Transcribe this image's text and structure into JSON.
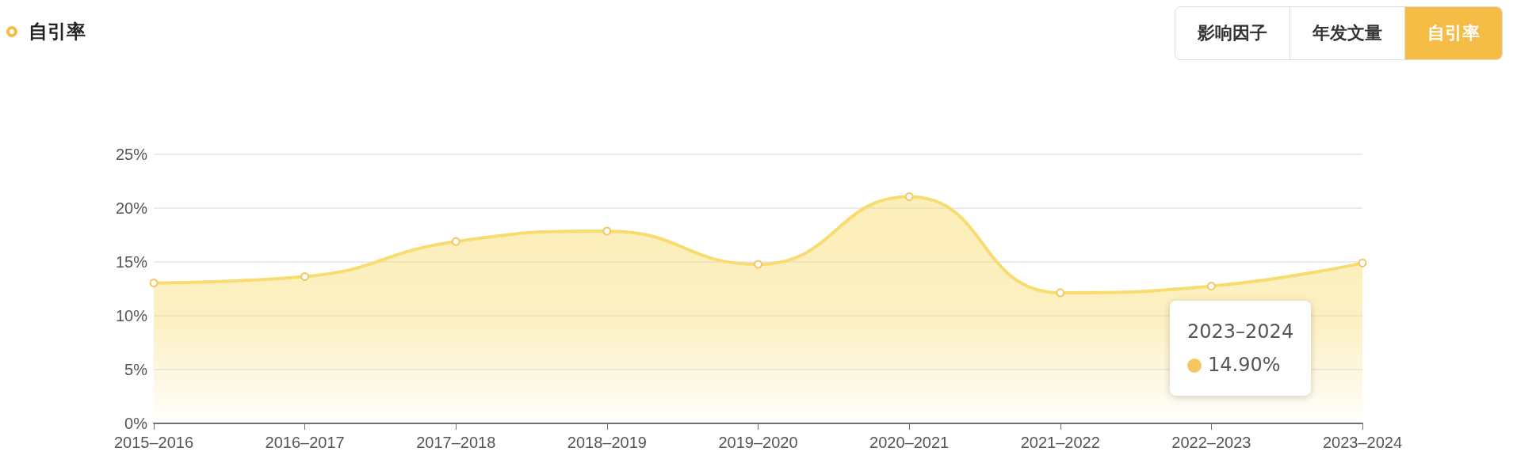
{
  "chart_data": {
    "type": "area",
    "title": "自引率",
    "categories": [
      "2015–2016",
      "2016–2017",
      "2017–2018",
      "2018–2019",
      "2019–2020",
      "2020–2021",
      "2021–2022",
      "2022–2023",
      "2023–2024"
    ],
    "series": [
      {
        "color": "#f8dc70",
        "values": [
          13.05,
          13.64,
          16.9,
          17.86,
          14.78,
          21.07,
          12.14,
          12.75,
          14.9
        ]
      }
    ],
    "ylim": [
      0,
      25
    ],
    "yticks": [
      {
        "value": 0,
        "label": "0%"
      },
      {
        "value": 5,
        "label": "5%"
      },
      {
        "value": 10,
        "label": "10%"
      },
      {
        "value": 15,
        "label": "15%"
      },
      {
        "value": 20,
        "label": "20%"
      },
      {
        "value": 25,
        "label": "25%"
      }
    ],
    "grid": "y",
    "marker": "circle",
    "line_style": "solid",
    "annotations": [
      "影响因子",
      "年发文量",
      "自引率",
      "2023–2024",
      "14.90%"
    ]
  }
}
